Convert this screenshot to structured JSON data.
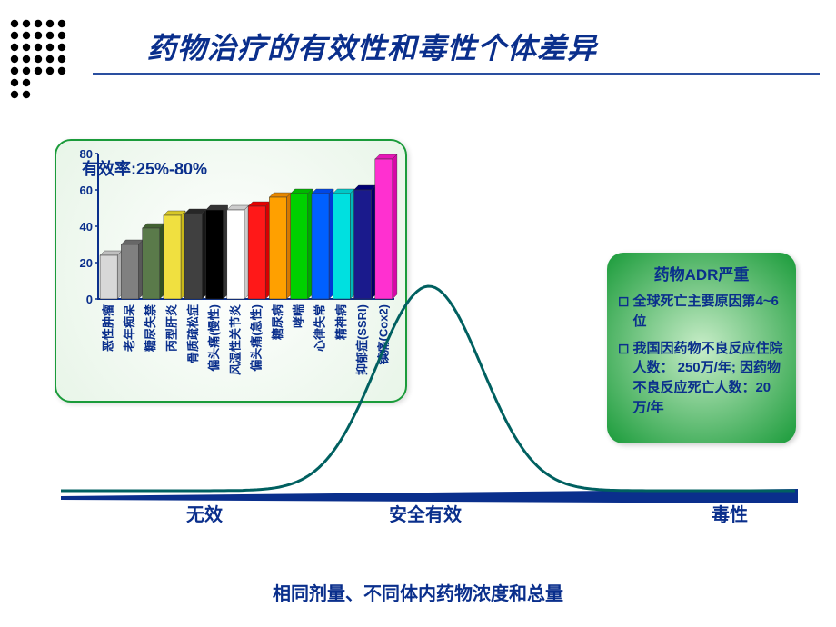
{
  "title": "药物治疗的有效性和毒性个体差异",
  "title_color": "#0a2f8c",
  "title_fontsize": 32,
  "dot_colors": [
    "#f0b400",
    "#f0b400",
    "#0a2f8c",
    "#0a2f8c",
    "#0a2f8c",
    "#0a2f8c",
    "#0a2f8c"
  ],
  "eff_label": "有效率:25%-80%",
  "bar_chart": {
    "type": "bar",
    "categories": [
      "恶性肿瘤",
      "老年痴呆",
      "糖尿失禁",
      "丙型肝炎",
      "骨质疏松症",
      "偏头痛(慢性)",
      "风湿性关节炎",
      "偏头痛(急性)",
      "糖尿病",
      "哮喘",
      "心律失常",
      "精神病",
      "抑郁症(SSRI)",
      "镇痛(Cox2)"
    ],
    "values": [
      24,
      30,
      39,
      46,
      47,
      49,
      49,
      51,
      56,
      58,
      58,
      58,
      60,
      77
    ],
    "bar_colors": [
      "#d8d8d8",
      "#808080",
      "#5a7a4a",
      "#f0e040",
      "#404040",
      "#000000",
      "#ffffff",
      "#ff1818",
      "#ffa000",
      "#00d000",
      "#0060ff",
      "#00e0e0",
      "#1a1a8c",
      "#ff30d0"
    ],
    "ylim": [
      0,
      80
    ],
    "ytick_step": 20,
    "axis_color": "#0a2f8c",
    "grid_off": true,
    "bar_width": 0.82,
    "label_fontsize": 13,
    "tick_fontsize": 13,
    "background": "radial-gradient(white,#e8f5e8)"
  },
  "adr_panel": {
    "title": "药物ADR严重",
    "items": [
      "全球死亡主要原因第4~6 位",
      "我国因药物不良反应住院人数： 250万/年; 因药物不良反应死亡人数：20万/年"
    ],
    "bg_colors": [
      "#c8edc8",
      "#1a9b3a"
    ],
    "text_color": "#0a2f8c"
  },
  "curve": {
    "type": "line",
    "line_color": "#006060",
    "baseline_color": "#0a2f8c",
    "line_width": 3,
    "labels": [
      "无效",
      "安全有效",
      "毒性"
    ],
    "label_fontsize": 20
  },
  "footer": "相同剂量、不同体内药物浓度和总量"
}
